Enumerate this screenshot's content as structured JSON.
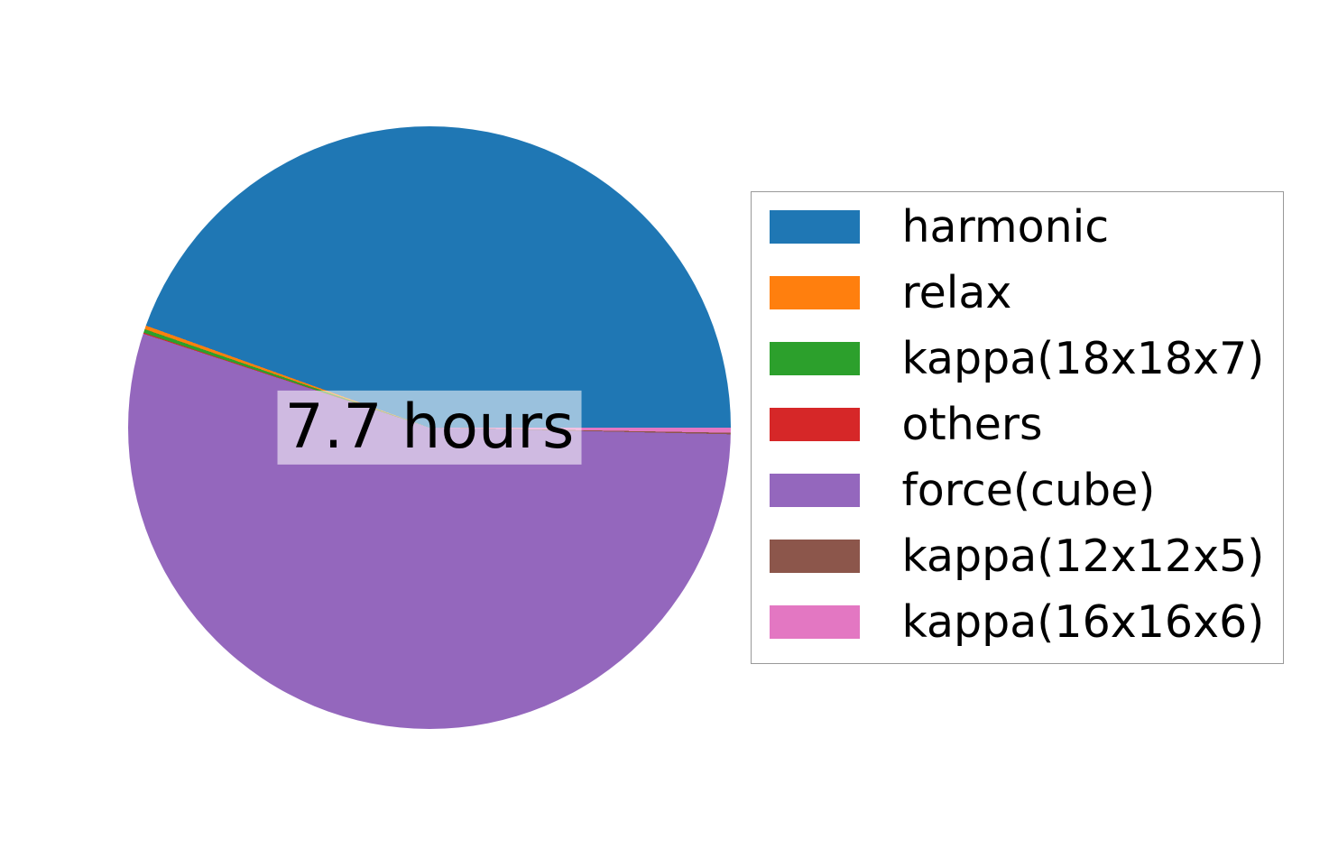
{
  "figure": {
    "background_color": "#ffffff"
  },
  "chart_data": {
    "type": "pie",
    "title": "",
    "center_label": "7.7 hours",
    "total_hours": 7.7,
    "units": "hours",
    "start_angle_deg": 0,
    "direction": "counterclockwise",
    "slices": [
      {
        "label": "harmonic",
        "color": "#1f77b4",
        "percent": 44.5,
        "hours_est": 3.43
      },
      {
        "label": "relax",
        "color": "#ff7f0e",
        "percent": 0.2,
        "hours_est": 0.015
      },
      {
        "label": "kappa(18x18x7)",
        "color": "#2ca02c",
        "percent": 0.2,
        "hours_est": 0.015
      },
      {
        "label": "others",
        "color": "#d62728",
        "percent": 0.05,
        "hours_est": 0.004
      },
      {
        "label": "force(cube)",
        "color": "#9467bd",
        "percent": 54.7,
        "hours_est": 4.21
      },
      {
        "label": "kappa(12x12x5)",
        "color": "#8c564b",
        "percent": 0.08,
        "hours_est": 0.006
      },
      {
        "label": "kappa(16x16x6)",
        "color": "#e377c2",
        "percent": 0.27,
        "hours_est": 0.021
      }
    ],
    "legend": {
      "position": "right",
      "border_color": "#999999",
      "background_color": "#ffffff",
      "labels": [
        "harmonic",
        "relax",
        "kappa(18x18x7)",
        "others",
        "force(cube)",
        "kappa(12x12x5)",
        "kappa(16x16x6)"
      ]
    }
  }
}
